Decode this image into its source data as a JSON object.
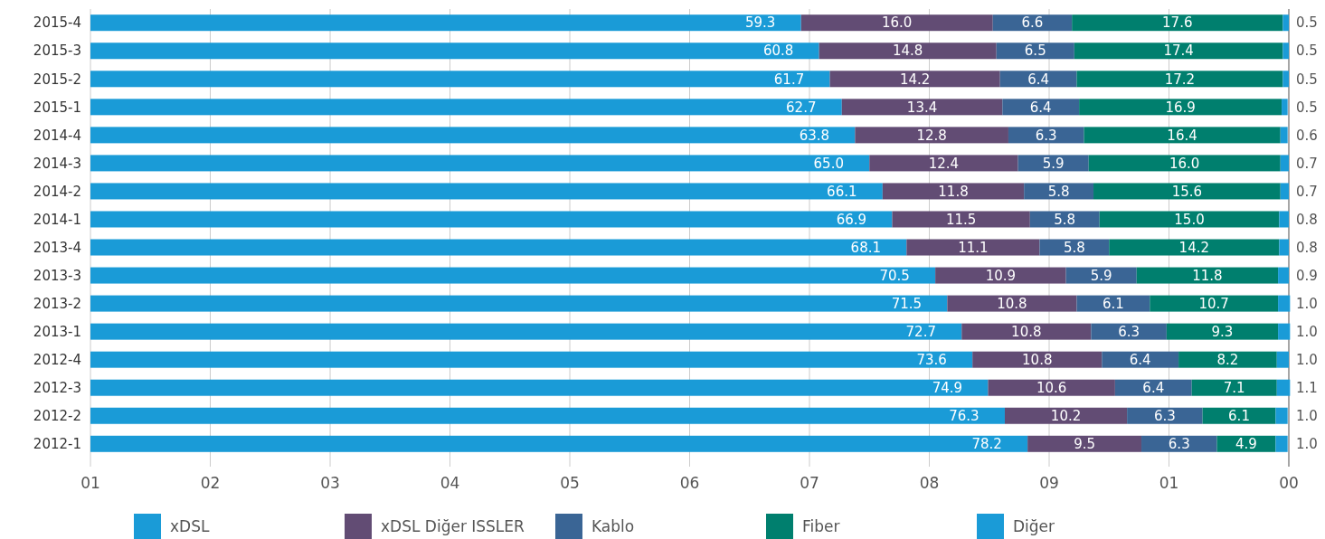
{
  "chart_data": {
    "type": "bar",
    "orientation": "horizontal",
    "stacked": true,
    "grid": "x",
    "legend": "bottom",
    "categories": [
      "2015-4",
      "2015-3",
      "2015-2",
      "2015-1",
      "2014-4",
      "2014-3",
      "2014-2",
      "2014-1",
      "2013-4",
      "2013-3",
      "2013-2",
      "2013-1",
      "2012-4",
      "2012-3",
      "2012-2",
      "2012-1"
    ],
    "xlim": [
      0,
      100
    ],
    "xticks": [
      {
        "value": 0,
        "label": null
      },
      {
        "value": 10,
        "label": null
      },
      {
        "value": 20,
        "label": null
      },
      {
        "value": 30,
        "label": null
      },
      {
        "value": 40,
        "label": null
      },
      {
        "value": 50,
        "label": null
      },
      {
        "value": 60,
        "label": null
      },
      {
        "value": 70,
        "label": null
      },
      {
        "value": 80,
        "label": null
      },
      {
        "value": 90,
        "label": null
      },
      {
        "value": 100,
        "label": null
      }
    ],
    "annotations": [
      "01",
      "02",
      "03",
      "04",
      "05",
      "06",
      "07",
      "08",
      "09",
      "01",
      "00"
    ],
    "series": [
      {
        "name": "xDSL",
        "color": "#1a9bd7",
        "values": [
          59.3,
          60.8,
          61.7,
          62.7,
          63.8,
          65.0,
          66.1,
          66.9,
          68.1,
          70.5,
          71.5,
          72.7,
          73.6,
          74.9,
          76.3,
          78.2
        ],
        "value_labels": [
          "59.3",
          "60.8",
          "61.7",
          "62.7",
          "63.8",
          "65.0",
          "66.1",
          "66.9",
          "68.1",
          "70.5",
          "71.5",
          "72.7",
          "73.6",
          "74.9",
          "76.3",
          "78.2"
        ]
      },
      {
        "name": "xDSL Diğer ISSLER",
        "color": "#624c74",
        "values": [
          16.0,
          14.8,
          14.2,
          13.4,
          12.8,
          12.4,
          11.8,
          11.5,
          11.1,
          10.9,
          10.8,
          10.8,
          10.8,
          10.6,
          10.2,
          9.5
        ],
        "value_labels": [
          "16.0",
          "14.8",
          "14.2",
          "13.4",
          "12.8",
          "12.4",
          "11.8",
          "11.5",
          "11.1",
          "10.9",
          "10.8",
          "10.8",
          "10.8",
          "10.6",
          "10.2",
          "9.5"
        ]
      },
      {
        "name": "Kablo",
        "color": "#3a6595",
        "values": [
          6.6,
          6.5,
          6.4,
          6.4,
          6.3,
          5.9,
          5.8,
          5.8,
          5.8,
          5.9,
          6.1,
          6.3,
          6.4,
          6.4,
          6.3,
          6.3
        ],
        "value_labels": [
          "6.6",
          "6.5",
          "6.4",
          "6.4",
          "6.3",
          "5.9",
          "5.8",
          "5.8",
          "5.8",
          "5.9",
          "6.1",
          "6.3",
          "6.4",
          "6.4",
          "6.3",
          "6.3"
        ]
      },
      {
        "name": "Fiber",
        "color": "#007f6e",
        "values": [
          17.6,
          17.4,
          17.2,
          16.9,
          16.4,
          16.0,
          15.6,
          15.0,
          14.2,
          11.8,
          10.7,
          9.3,
          8.2,
          7.1,
          6.1,
          4.9
        ],
        "value_labels": [
          "17.6",
          "17.4",
          "17.2",
          "16.9",
          "16.4",
          "16.0",
          "15.6",
          "15.0",
          "14.2",
          "11.8",
          "10.7",
          "9.3",
          "8.2",
          "7.1",
          "6.1",
          "4.9"
        ]
      },
      {
        "name": "Diğer",
        "color": "#1a9bd7",
        "values": [
          0.5,
          0.5,
          0.5,
          0.5,
          0.6,
          0.7,
          0.7,
          0.8,
          0.8,
          0.9,
          1.0,
          1.0,
          1.0,
          1.1,
          1.0,
          1.0
        ],
        "value_labels": [
          "0.5",
          "0.5",
          "0.5",
          "0.5",
          "0.6",
          "0.7",
          "0.7",
          "0.8",
          "0.8",
          "0.9",
          "1.0",
          "1.0",
          "1.0",
          "1.1",
          "1.0",
          "1.0"
        ]
      }
    ]
  }
}
